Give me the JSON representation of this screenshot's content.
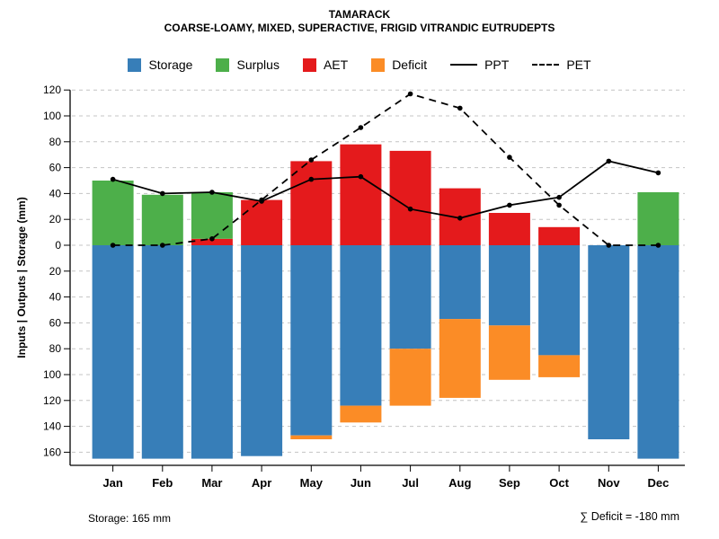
{
  "title": "TAMARACK",
  "subtitle": "COARSE-LOAMY, MIXED, SUPERACTIVE, FRIGID VITRANDIC EUTRUDEPTS",
  "footer": {
    "storage_note": "Storage: 165 mm",
    "deficit_note": "∑ Deficit = -180 mm"
  },
  "chart_data": {
    "type": "bar",
    "title": "TAMARACK",
    "subtitle": "COARSE-LOAMY, MIXED, SUPERACTIVE, FRIGID VITRANDIC EUTRUDEPTS",
    "xlabel": "",
    "ylabel": "Inputs | Outputs | Storage   (mm)",
    "ylim": [
      -160,
      120
    ],
    "ytick_step": 20,
    "ytick_labels_absolute": true,
    "grid": true,
    "grid_style": "dashed",
    "legend_position": "top",
    "categories": [
      "Jan",
      "Feb",
      "Mar",
      "Apr",
      "May",
      "Jun",
      "Jul",
      "Aug",
      "Sep",
      "Oct",
      "Nov",
      "Dec"
    ],
    "series": [
      {
        "name": "Storage",
        "type": "bar",
        "direction": "down",
        "color": "#377EB8",
        "values": [
          165,
          165,
          165,
          163,
          147,
          124,
          80,
          57,
          62,
          85,
          150,
          165
        ]
      },
      {
        "name": "Surplus",
        "type": "bar",
        "direction": "up",
        "color": "#4DAF4A",
        "values": [
          50,
          39,
          36,
          0,
          0,
          0,
          0,
          0,
          0,
          0,
          0,
          41
        ]
      },
      {
        "name": "AET",
        "type": "bar",
        "direction": "up",
        "color": "#E41A1C",
        "values": [
          0,
          0,
          5,
          35,
          65,
          78,
          73,
          44,
          25,
          14,
          0,
          0
        ]
      },
      {
        "name": "Deficit",
        "type": "bar",
        "direction": "down",
        "color": "#FB8C26",
        "values": [
          0,
          0,
          0,
          0,
          3,
          13,
          44,
          61,
          42,
          17,
          0,
          0
        ]
      },
      {
        "name": "PPT",
        "type": "line",
        "style": "solid",
        "color": "#000000",
        "values": [
          51,
          40,
          41,
          34,
          51,
          53,
          28,
          21,
          31,
          37,
          65,
          56
        ]
      },
      {
        "name": "PET",
        "type": "line",
        "style": "dashed",
        "color": "#000000",
        "values": [
          0,
          0,
          5,
          35,
          66,
          91,
          117,
          106,
          68,
          31,
          0,
          0
        ]
      }
    ]
  }
}
